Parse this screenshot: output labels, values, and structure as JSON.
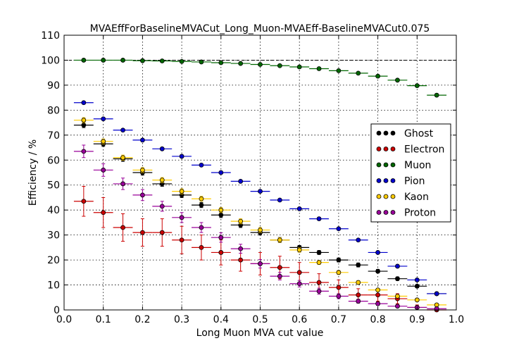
{
  "chart_data": {
    "type": "scatter",
    "title": "MVAEffForBaselineMVACut_Long_Muon-MVAEff-BaselineMVACut0.075",
    "xlabel": "Long Muon MVA cut value",
    "ylabel": "Efficiency / %",
    "xlim": [
      0.0,
      1.0
    ],
    "ylim": [
      0,
      110
    ],
    "x_ticks": [
      "0.0",
      "0.1",
      "0.2",
      "0.3",
      "0.4",
      "0.5",
      "0.6",
      "0.7",
      "0.8",
      "0.9",
      "1.0"
    ],
    "y_ticks": [
      "0",
      "10",
      "20",
      "30",
      "40",
      "50",
      "60",
      "70",
      "80",
      "90",
      "100",
      "110"
    ],
    "grid": true,
    "legend_position": "center-right",
    "reference_line_y": 100,
    "x_bin_half_width": 0.025,
    "series": [
      {
        "name": "Ghost",
        "color": "#000000",
        "x": [
          0.05,
          0.1,
          0.15,
          0.2,
          0.25,
          0.3,
          0.35,
          0.4,
          0.45,
          0.5,
          0.55,
          0.6,
          0.65,
          0.7,
          0.75,
          0.8,
          0.85,
          0.9,
          0.95
        ],
        "y": [
          74,
          66.5,
          60.5,
          55,
          50.5,
          46,
          42,
          38,
          34,
          31,
          28,
          25,
          23,
          20,
          18,
          15.5,
          12.5,
          9.5,
          6.5
        ],
        "yerr": [
          1,
          1,
          1,
          1,
          1,
          1,
          1,
          1,
          1,
          1,
          1,
          0.8,
          0.8,
          0.8,
          0.8,
          0.7,
          0.7,
          0.6,
          0.5
        ]
      },
      {
        "name": "Electron",
        "color": "#cc0000",
        "x": [
          0.05,
          0.1,
          0.15,
          0.2,
          0.25,
          0.3,
          0.35,
          0.4,
          0.45,
          0.5,
          0.55,
          0.6,
          0.65,
          0.7,
          0.75,
          0.8,
          0.85,
          0.9,
          0.95
        ],
        "y": [
          43.5,
          39,
          33,
          31,
          31,
          28,
          25,
          23,
          20,
          18.5,
          17,
          15,
          11,
          9,
          6,
          6,
          4.5,
          1,
          0
        ],
        "yerr": [
          6,
          6,
          5.5,
          5.5,
          5.5,
          5.5,
          5,
          5,
          4.5,
          4.5,
          4.5,
          4,
          3.5,
          3,
          2.5,
          2.5,
          2,
          1,
          0
        ]
      },
      {
        "name": "Muon",
        "color": "#006600",
        "x": [
          0.05,
          0.1,
          0.15,
          0.2,
          0.25,
          0.3,
          0.35,
          0.4,
          0.45,
          0.5,
          0.55,
          0.6,
          0.65,
          0.7,
          0.75,
          0.8,
          0.85,
          0.9,
          0.95
        ],
        "y": [
          100,
          100,
          100,
          99.8,
          99.7,
          99.5,
          99.3,
          99,
          98.7,
          98.3,
          97.8,
          97.3,
          96.6,
          95.8,
          94.8,
          93.6,
          92,
          89.8,
          86
        ],
        "yerr": [
          0.1,
          0.1,
          0.1,
          0.1,
          0.1,
          0.1,
          0.1,
          0.1,
          0.1,
          0.1,
          0.1,
          0.1,
          0.1,
          0.1,
          0.1,
          0.1,
          0.1,
          0.1,
          0.1
        ]
      },
      {
        "name": "Pion",
        "color": "#0000cc",
        "x": [
          0.05,
          0.1,
          0.15,
          0.2,
          0.25,
          0.3,
          0.35,
          0.4,
          0.45,
          0.5,
          0.55,
          0.6,
          0.65,
          0.7,
          0.75,
          0.8,
          0.85,
          0.9,
          0.95
        ],
        "y": [
          83,
          76.5,
          72,
          68,
          64.5,
          61.5,
          58,
          55,
          51.5,
          47.5,
          44,
          40.5,
          36.5,
          32.5,
          28,
          23,
          17.5,
          12,
          6.5
        ],
        "yerr": [
          0.4,
          0.4,
          0.4,
          0.4,
          0.4,
          0.4,
          0.4,
          0.4,
          0.4,
          0.4,
          0.4,
          0.4,
          0.4,
          0.4,
          0.4,
          0.4,
          0.4,
          0.3,
          0.3
        ]
      },
      {
        "name": "Kaon",
        "color": "#ffcc00",
        "x": [
          0.05,
          0.1,
          0.15,
          0.2,
          0.25,
          0.3,
          0.35,
          0.4,
          0.45,
          0.5,
          0.55,
          0.6,
          0.65,
          0.7,
          0.75,
          0.8,
          0.85,
          0.9,
          0.95
        ],
        "y": [
          76,
          67.5,
          61,
          56,
          52,
          47.5,
          44.5,
          40,
          35.5,
          32,
          28,
          24,
          19,
          15,
          11,
          8,
          5.5,
          4,
          2
        ],
        "yerr": [
          1,
          1,
          1,
          1,
          1,
          1,
          1,
          1,
          1,
          1,
          0.9,
          0.9,
          0.8,
          0.8,
          0.7,
          0.6,
          0.5,
          0.4,
          0.3
        ]
      },
      {
        "name": "Proton",
        "color": "#990099",
        "x": [
          0.05,
          0.1,
          0.15,
          0.2,
          0.25,
          0.3,
          0.35,
          0.4,
          0.45,
          0.5,
          0.55,
          0.6,
          0.65,
          0.7,
          0.75,
          0.8,
          0.85,
          0.9,
          0.95
        ],
        "y": [
          63.5,
          56,
          50.5,
          46,
          41.5,
          37,
          33,
          29,
          24.5,
          18.5,
          13.5,
          10.5,
          7.5,
          5.5,
          3.5,
          2.5,
          1.5,
          1,
          0.5
        ],
        "yerr": [
          2.5,
          2.5,
          2.3,
          2.2,
          2,
          2,
          2,
          1.9,
          1.8,
          1.7,
          1.5,
          1.3,
          1.2,
          1,
          0.8,
          0.7,
          0.5,
          0.4,
          0.3
        ]
      }
    ]
  }
}
